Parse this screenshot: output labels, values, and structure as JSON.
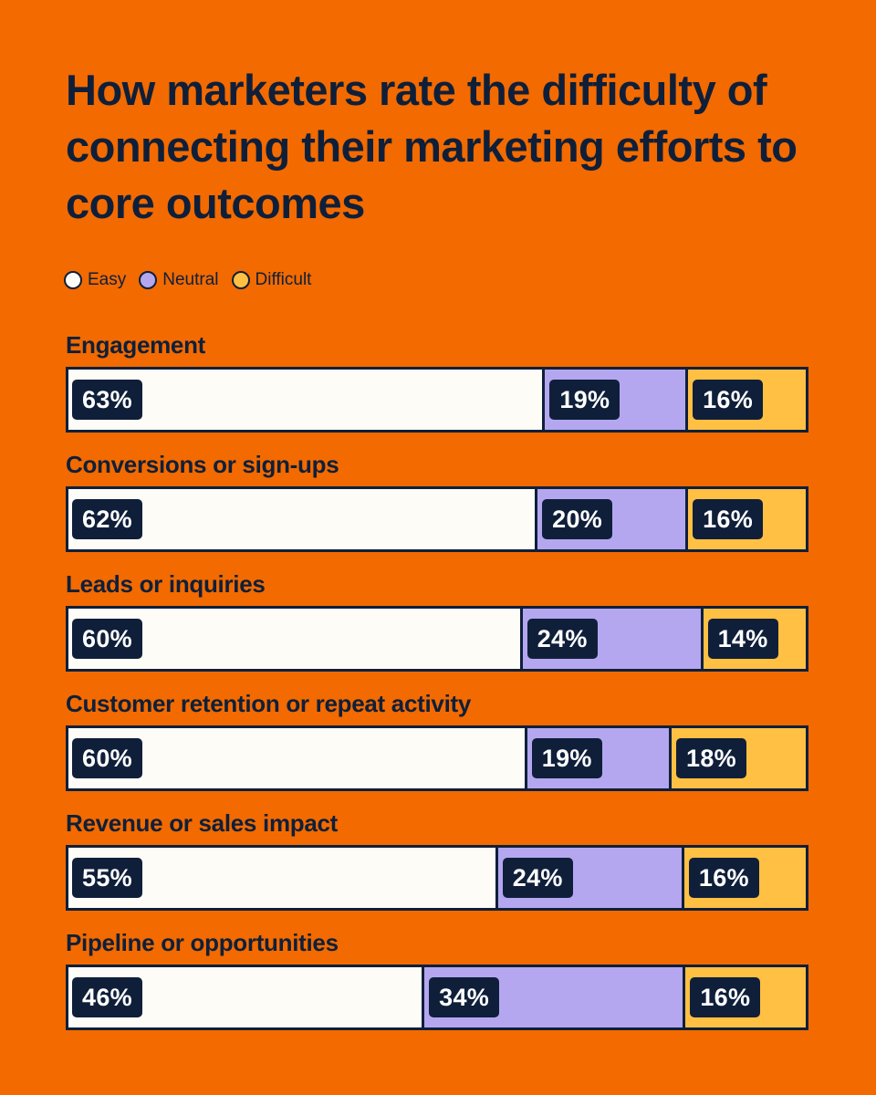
{
  "chart_data": {
    "type": "bar",
    "orientation": "horizontal",
    "stacked": true,
    "title": "How marketers rate the difficulty of connecting their marketing efforts to core outcomes",
    "legend_position": "top-left",
    "categories": [
      "Engagement",
      "Conversions or sign-ups",
      "Leads or inquiries",
      "Customer retention or repeat activity",
      "Revenue or sales impact",
      "Pipeline or opportunities"
    ],
    "series": [
      {
        "name": "Easy",
        "color": "#FEFCF6",
        "values": [
          63,
          62,
          60,
          60,
          55,
          46
        ]
      },
      {
        "name": "Neutral",
        "color": "#B4A7F0",
        "values": [
          19,
          20,
          24,
          19,
          24,
          34
        ]
      },
      {
        "name": "Difficult",
        "color": "#FFC043",
        "values": [
          16,
          16,
          14,
          18,
          16,
          16
        ]
      }
    ],
    "value_suffix": "%",
    "grid": false
  }
}
